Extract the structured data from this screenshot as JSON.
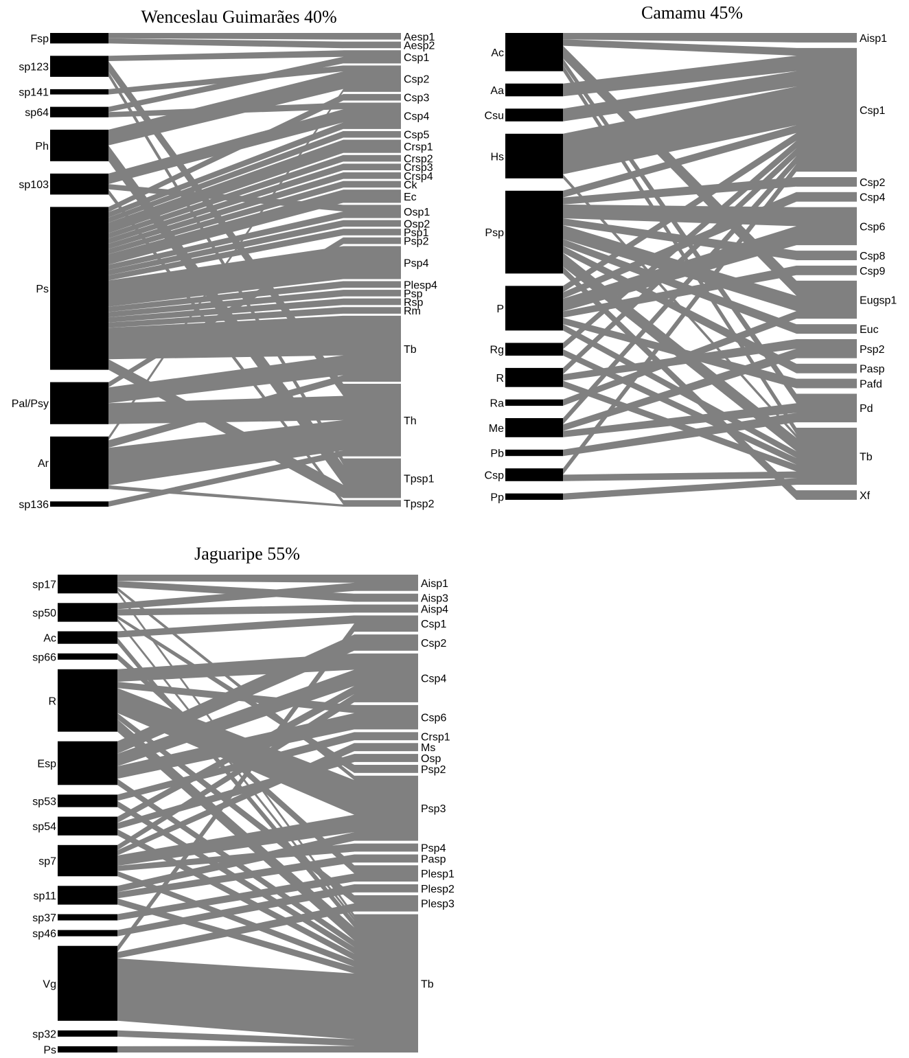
{
  "networks": [
    {
      "title": "Wenceslau Guimarães 40%",
      "lower": [
        {
          "label": "Fsp",
          "size": 2
        },
        {
          "label": "sp123",
          "size": 4
        },
        {
          "label": "sp141",
          "size": 1
        },
        {
          "label": "sp64",
          "size": 2
        },
        {
          "label": "Ph",
          "size": 6
        },
        {
          "label": "sp103",
          "size": 4
        },
        {
          "label": "Ps",
          "size": 31
        },
        {
          "label": "Pal/Psy",
          "size": 8
        },
        {
          "label": "Ar",
          "size": 10
        },
        {
          "label": "sp136",
          "size": 1
        }
      ],
      "higher": [
        {
          "label": "Aesp1",
          "size": 1
        },
        {
          "label": "Aesp2",
          "size": 1
        },
        {
          "label": "Csp1",
          "size": 2
        },
        {
          "label": "Csp2",
          "size": 4
        },
        {
          "label": "Csp3",
          "size": 1
        },
        {
          "label": "Csp4",
          "size": 4
        },
        {
          "label": "Csp5",
          "size": 1
        },
        {
          "label": "Crsp1",
          "size": 2
        },
        {
          "label": "Crsp2",
          "size": 1
        },
        {
          "label": "Crsp3",
          "size": 1
        },
        {
          "label": "Crsp4",
          "size": 1
        },
        {
          "label": "Ck",
          "size": 1
        },
        {
          "label": "Ec",
          "size": 2
        },
        {
          "label": "Osp1",
          "size": 2
        },
        {
          "label": "Osp2",
          "size": 1
        },
        {
          "label": "Psp1",
          "size": 1
        },
        {
          "label": "Psp2",
          "size": 1
        },
        {
          "label": "Psp4",
          "size": 5
        },
        {
          "label": "Plesp4",
          "size": 1
        },
        {
          "label": "Psp",
          "size": 1
        },
        {
          "label": "Rsp",
          "size": 1
        },
        {
          "label": "Rm",
          "size": 1
        },
        {
          "label": "Tb",
          "size": 10
        },
        {
          "label": "Th",
          "size": 11
        },
        {
          "label": "Tpsp1",
          "size": 6
        },
        {
          "label": "Tpsp2",
          "size": 1
        }
      ],
      "links": [
        {
          "from": "Fsp",
          "to": "Aesp1",
          "w": 1
        },
        {
          "from": "Fsp",
          "to": "Aesp2",
          "w": 1
        },
        {
          "from": "sp123",
          "to": "Csp1",
          "w": 1
        },
        {
          "from": "sp123",
          "to": "Th",
          "w": 2
        },
        {
          "from": "sp123",
          "to": "Tpsp1",
          "w": 1
        },
        {
          "from": "sp141",
          "to": "Csp2",
          "w": 1
        },
        {
          "from": "sp64",
          "to": "Csp1",
          "w": 1
        },
        {
          "from": "sp64",
          "to": "Csp4",
          "w": 1
        },
        {
          "from": "Ph",
          "to": "Csp2",
          "w": 3
        },
        {
          "from": "Ph",
          "to": "Tpsp1",
          "w": 3
        },
        {
          "from": "sp103",
          "to": "Csp4",
          "w": 2
        },
        {
          "from": "sp103",
          "to": "Osp1",
          "w": 1
        },
        {
          "from": "sp103",
          "to": "Tpsp2",
          "w": 1
        },
        {
          "from": "Ps",
          "to": "Csp3",
          "w": 1
        },
        {
          "from": "Ps",
          "to": "Csp4",
          "w": 1
        },
        {
          "from": "Ps",
          "to": "Csp5",
          "w": 1
        },
        {
          "from": "Ps",
          "to": "Crsp1",
          "w": 2
        },
        {
          "from": "Ps",
          "to": "Crsp2",
          "w": 1
        },
        {
          "from": "Ps",
          "to": "Crsp3",
          "w": 1
        },
        {
          "from": "Ps",
          "to": "Crsp4",
          "w": 1
        },
        {
          "from": "Ps",
          "to": "Ck",
          "w": 1
        },
        {
          "from": "Ps",
          "to": "Ec",
          "w": 2
        },
        {
          "from": "Ps",
          "to": "Osp1",
          "w": 1
        },
        {
          "from": "Ps",
          "to": "Osp2",
          "w": 1
        },
        {
          "from": "Ps",
          "to": "Psp1",
          "w": 1
        },
        {
          "from": "Ps",
          "to": "Psp4",
          "w": 5
        },
        {
          "from": "Ps",
          "to": "Plesp4",
          "w": 1
        },
        {
          "from": "Ps",
          "to": "Psp",
          "w": 1
        },
        {
          "from": "Ps",
          "to": "Rsp",
          "w": 1
        },
        {
          "from": "Ps",
          "to": "Rm",
          "w": 1
        },
        {
          "from": "Ps",
          "to": "Tb",
          "w": 6
        },
        {
          "from": "Ps",
          "to": "Tpsp1",
          "w": 2
        },
        {
          "from": "Pal/Psy",
          "to": "Psp2",
          "w": 1
        },
        {
          "from": "Pal/Psy",
          "to": "Tb",
          "w": 3
        },
        {
          "from": "Pal/Psy",
          "to": "Th",
          "w": 4
        },
        {
          "from": "Ar",
          "to": "Csp2",
          "w": 0.5
        },
        {
          "from": "Ar",
          "to": "Tb",
          "w": 1
        },
        {
          "from": "Ar",
          "to": "Th",
          "w": 5
        },
        {
          "from": "Ar",
          "to": "Tpsp2",
          "w": 0.5
        },
        {
          "from": "sp136",
          "to": "Th",
          "w": 1
        }
      ]
    },
    {
      "title": "Camamu 45%",
      "lower": [
        {
          "label": "Ac",
          "size": 6
        },
        {
          "label": "Aa",
          "size": 2
        },
        {
          "label": "Csu",
          "size": 2
        },
        {
          "label": "Hs",
          "size": 7
        },
        {
          "label": "Psp",
          "size": 13
        },
        {
          "label": "P",
          "size": 7
        },
        {
          "label": "Rg",
          "size": 2
        },
        {
          "label": "R",
          "size": 3
        },
        {
          "label": "Ra",
          "size": 1
        },
        {
          "label": "Me",
          "size": 3
        },
        {
          "label": "Pb",
          "size": 1
        },
        {
          "label": "Csp",
          "size": 2
        },
        {
          "label": "Pp",
          "size": 1
        }
      ],
      "higher": [
        {
          "label": "Aisp1",
          "size": 1
        },
        {
          "label": "Csp1",
          "size": 13
        },
        {
          "label": "Csp2",
          "size": 1
        },
        {
          "label": "Csp4",
          "size": 1
        },
        {
          "label": "Csp6",
          "size": 4
        },
        {
          "label": "Csp8",
          "size": 1
        },
        {
          "label": "Csp9",
          "size": 1
        },
        {
          "label": "Eugsp1",
          "size": 4
        },
        {
          "label": "Euc",
          "size": 1
        },
        {
          "label": "Psp2",
          "size": 2
        },
        {
          "label": "Pasp",
          "size": 1
        },
        {
          "label": "Pafd",
          "size": 1
        },
        {
          "label": "Pd",
          "size": 3
        },
        {
          "label": "Tb",
          "size": 6
        },
        {
          "label": "Xf",
          "size": 1
        }
      ],
      "links": [
        {
          "from": "Ac",
          "to": "Aisp1",
          "w": 1
        },
        {
          "from": "Ac",
          "to": "Csp1",
          "w": 1
        },
        {
          "from": "Ac",
          "to": "Eugsp1",
          "w": 2
        },
        {
          "from": "Ac",
          "to": "Pd",
          "w": 1
        },
        {
          "from": "Ac",
          "to": "Tb",
          "w": 1
        },
        {
          "from": "Aa",
          "to": "Csp1",
          "w": 2
        },
        {
          "from": "Csu",
          "to": "Csp1",
          "w": 2
        },
        {
          "from": "Hs",
          "to": "Csp1",
          "w": 5
        },
        {
          "from": "Hs",
          "to": "Tb",
          "w": 0.5
        },
        {
          "from": "Psp",
          "to": "Csp1",
          "w": 1
        },
        {
          "from": "Psp",
          "to": "Csp2",
          "w": 1
        },
        {
          "from": "Psp",
          "to": "Csp6",
          "w": 2
        },
        {
          "from": "Psp",
          "to": "Csp8",
          "w": 1
        },
        {
          "from": "Psp",
          "to": "Eugsp1",
          "w": 2
        },
        {
          "from": "Psp",
          "to": "Euc",
          "w": 1
        },
        {
          "from": "Psp",
          "to": "Pasp",
          "w": 1
        },
        {
          "from": "Psp",
          "to": "Tb",
          "w": 2
        },
        {
          "from": "Psp",
          "to": "Xf",
          "w": 1
        },
        {
          "from": "P",
          "to": "Csp1",
          "w": 1
        },
        {
          "from": "P",
          "to": "Csp4",
          "w": 1
        },
        {
          "from": "P",
          "to": "Csp6",
          "w": 2
        },
        {
          "from": "P",
          "to": "Csp9",
          "w": 1
        },
        {
          "from": "P",
          "to": "Pafd",
          "w": 1
        },
        {
          "from": "P",
          "to": "Tb",
          "w": 1
        },
        {
          "from": "Rg",
          "to": "Csp1",
          "w": 1
        },
        {
          "from": "Rg",
          "to": "Tb",
          "w": 1
        },
        {
          "from": "R",
          "to": "Csp1",
          "w": 1
        },
        {
          "from": "R",
          "to": "Psp2",
          "w": 1
        },
        {
          "from": "R",
          "to": "Tb",
          "w": 1
        },
        {
          "from": "Ra",
          "to": "Eugsp1",
          "w": 1
        },
        {
          "from": "Me",
          "to": "Csp1",
          "w": 1
        },
        {
          "from": "Me",
          "to": "Psp2",
          "w": 1
        },
        {
          "from": "Me",
          "to": "Pd",
          "w": 1
        },
        {
          "from": "Pb",
          "to": "Pd",
          "w": 1
        },
        {
          "from": "Csp",
          "to": "Csp1",
          "w": 1
        },
        {
          "from": "Csp",
          "to": "Tb",
          "w": 1
        },
        {
          "from": "Pp",
          "to": "Tb",
          "w": 1
        }
      ]
    },
    {
      "title": "Jaguaripe 55%",
      "lower": [
        {
          "label": "sp17",
          "size": 3
        },
        {
          "label": "sp50",
          "size": 3
        },
        {
          "label": "Ac",
          "size": 2
        },
        {
          "label": "sp66",
          "size": 1
        },
        {
          "label": "R",
          "size": 10
        },
        {
          "label": "Esp",
          "size": 7
        },
        {
          "label": "sp53",
          "size": 2
        },
        {
          "label": "sp54",
          "size": 3
        },
        {
          "label": "sp7",
          "size": 5
        },
        {
          "label": "sp11",
          "size": 3
        },
        {
          "label": "sp37",
          "size": 1
        },
        {
          "label": "sp46",
          "size": 1
        },
        {
          "label": "Vg",
          "size": 12
        },
        {
          "label": "sp32",
          "size": 1
        },
        {
          "label": "Ps",
          "size": 1
        }
      ],
      "higher": [
        {
          "label": "Aisp1",
          "size": 2
        },
        {
          "label": "Aisp3",
          "size": 1
        },
        {
          "label": "Aisp4",
          "size": 1
        },
        {
          "label": "Csp1",
          "size": 2
        },
        {
          "label": "Csp2",
          "size": 2
        },
        {
          "label": "Csp4",
          "size": 6
        },
        {
          "label": "Csp6",
          "size": 3
        },
        {
          "label": "Crsp1",
          "size": 1
        },
        {
          "label": "Ms",
          "size": 1
        },
        {
          "label": "Osp",
          "size": 1
        },
        {
          "label": "Psp2",
          "size": 1
        },
        {
          "label": "Psp3",
          "size": 8
        },
        {
          "label": "Psp4",
          "size": 1
        },
        {
          "label": "Pasp",
          "size": 1
        },
        {
          "label": "Plesp1",
          "size": 2
        },
        {
          "label": "Plesp2",
          "size": 1
        },
        {
          "label": "Plesp3",
          "size": 2
        },
        {
          "label": "Tb",
          "size": 17
        }
      ],
      "links": [
        {
          "from": "sp17",
          "to": "Aisp1",
          "w": 1
        },
        {
          "from": "sp17",
          "to": "Aisp3",
          "w": 1
        },
        {
          "from": "sp17",
          "to": "Psp3",
          "w": 0.5
        },
        {
          "from": "sp17",
          "to": "Tb",
          "w": 0.5
        },
        {
          "from": "sp50",
          "to": "Aisp1",
          "w": 1
        },
        {
          "from": "sp50",
          "to": "Aisp4",
          "w": 1
        },
        {
          "from": "sp50",
          "to": "Psp2",
          "w": 0.5
        },
        {
          "from": "sp50",
          "to": "Tb",
          "w": 0.5
        },
        {
          "from": "Ac",
          "to": "Csp1",
          "w": 1
        },
        {
          "from": "Ac",
          "to": "Tb",
          "w": 1
        },
        {
          "from": "sp66",
          "to": "Plesp1",
          "w": 1
        },
        {
          "from": "R",
          "to": "Csp4",
          "w": 2
        },
        {
          "from": "R",
          "to": "Csp6",
          "w": 1
        },
        {
          "from": "R",
          "to": "Psp3",
          "w": 4
        },
        {
          "from": "R",
          "to": "Plesp3",
          "w": 1
        },
        {
          "from": "R",
          "to": "Tb",
          "w": 2
        },
        {
          "from": "Esp",
          "to": "Csp2",
          "w": 2
        },
        {
          "from": "Esp",
          "to": "Csp4",
          "w": 2
        },
        {
          "from": "Esp",
          "to": "Csp6",
          "w": 2
        },
        {
          "from": "Esp",
          "to": "Tb",
          "w": 1
        },
        {
          "from": "sp53",
          "to": "Crsp1",
          "w": 1
        },
        {
          "from": "sp53",
          "to": "Tb",
          "w": 1
        },
        {
          "from": "sp54",
          "to": "Csp4",
          "w": 1
        },
        {
          "from": "sp54",
          "to": "Osp",
          "w": 1
        },
        {
          "from": "sp54",
          "to": "Tb",
          "w": 1
        },
        {
          "from": "sp7",
          "to": "Csp4",
          "w": 1
        },
        {
          "from": "sp7",
          "to": "Psp3",
          "w": 2
        },
        {
          "from": "sp7",
          "to": "Psp4",
          "w": 1
        },
        {
          "from": "sp7",
          "to": "Tb",
          "w": 1
        },
        {
          "from": "sp11",
          "to": "Psp3",
          "w": 1
        },
        {
          "from": "sp11",
          "to": "Pasp",
          "w": 1
        },
        {
          "from": "sp11",
          "to": "Tb",
          "w": 1
        },
        {
          "from": "sp37",
          "to": "Plesp1",
          "w": 1
        },
        {
          "from": "sp46",
          "to": "Plesp2",
          "w": 1
        },
        {
          "from": "Vg",
          "to": "Csp1",
          "w": 1
        },
        {
          "from": "Vg",
          "to": "Plesp3",
          "w": 1
        },
        {
          "from": "Vg",
          "to": "Tb",
          "w": 10
        },
        {
          "from": "sp32",
          "to": "Tb",
          "w": 1
        },
        {
          "from": "Ps",
          "to": "Tb",
          "w": 1
        },
        {
          "from": "sp7",
          "to": "Ms",
          "w": 1
        }
      ]
    }
  ]
}
